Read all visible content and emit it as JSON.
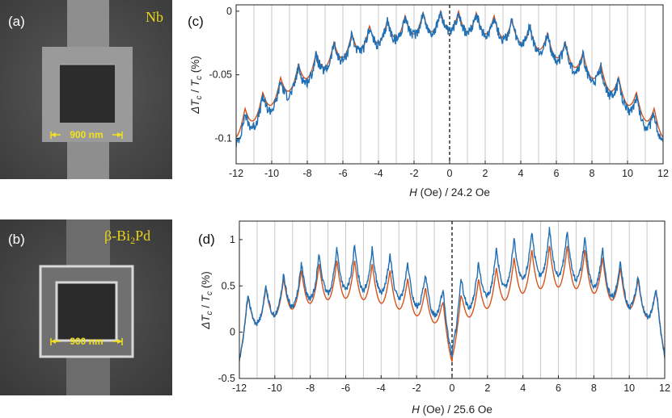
{
  "panels": {
    "a": {
      "label": "(a)",
      "material": "Nb",
      "scale": "900 nm"
    },
    "b": {
      "label": "(b)",
      "material_prefix": "β-Bi",
      "material_sub": "2",
      "material_suffix": "Pd",
      "scale": "900 nm"
    },
    "c": {
      "label": "(c)"
    },
    "d": {
      "label": "(d)"
    }
  },
  "colors": {
    "measured": "#1f6fb5",
    "fit": "#d4541c",
    "grid": "#c8c8c8",
    "sem_bg": "#4a4a4a",
    "text_yellow": "#e8d21a"
  },
  "chart_data": [
    {
      "id": "c",
      "type": "line",
      "xlabel_parts": {
        "h": "H",
        "rest": " (Oe) / 24.2 Oe"
      },
      "ylabel_parts": {
        "delta": "ΔT",
        "sub1": "c",
        "slash": " / ",
        "t": "T",
        "sub2": "c",
        "unit": " (%)"
      },
      "xlim": [
        -12,
        12
      ],
      "ylim": [
        -0.12,
        0.005
      ],
      "xticks": [
        -12,
        -10,
        -8,
        -6,
        -4,
        -2,
        0,
        2,
        4,
        6,
        8,
        10,
        12
      ],
      "yticks": [
        0,
        -0.05,
        -0.1
      ],
      "ytick_labels": [
        "0",
        "-0.05",
        "-0.1"
      ],
      "vertical_gridlines_at_integers": true,
      "zero_line": "dashed",
      "series": [
        {
          "role": "fit",
          "model": {
            "envelope_quadratic": 0.00058,
            "cusp_depth": 0.016,
            "period": 1
          }
        },
        {
          "role": "measured",
          "model": {
            "envelope_quadratic": 0.00061,
            "cusp_depth": 0.017,
            "period": 1,
            "noise": 0.004
          }
        }
      ]
    },
    {
      "id": "d",
      "type": "line",
      "xlabel_parts": {
        "h": "H",
        "rest": " (Oe) / 25.6 Oe"
      },
      "ylabel_parts": {
        "delta": "ΔT",
        "sub1": "c",
        "slash": " / ",
        "t": "T",
        "sub2": "c",
        "unit": " (%)"
      },
      "xlim": [
        -12,
        12
      ],
      "ylim": [
        -0.5,
        1.2
      ],
      "xticks": [
        -12,
        -10,
        -8,
        -6,
        -4,
        -2,
        0,
        2,
        4,
        6,
        8,
        10,
        12
      ],
      "yticks": [
        1,
        0.5,
        0,
        -0.5
      ],
      "ytick_labels": [
        "1",
        "0.5",
        "0",
        "-0.5"
      ],
      "vertical_gridlines_at_integers": true,
      "zero_line": "dashed",
      "series": [
        {
          "role": "fit",
          "model": {
            "peak": 0.9,
            "peak_at": 6,
            "cusp_depth": 0.45,
            "period": 1
          }
        },
        {
          "role": "measured",
          "model": {
            "peak": 1.08,
            "peak_at": 5.5,
            "cusp_depth": 0.5,
            "period": 1,
            "noise": 0.03
          }
        }
      ]
    }
  ]
}
